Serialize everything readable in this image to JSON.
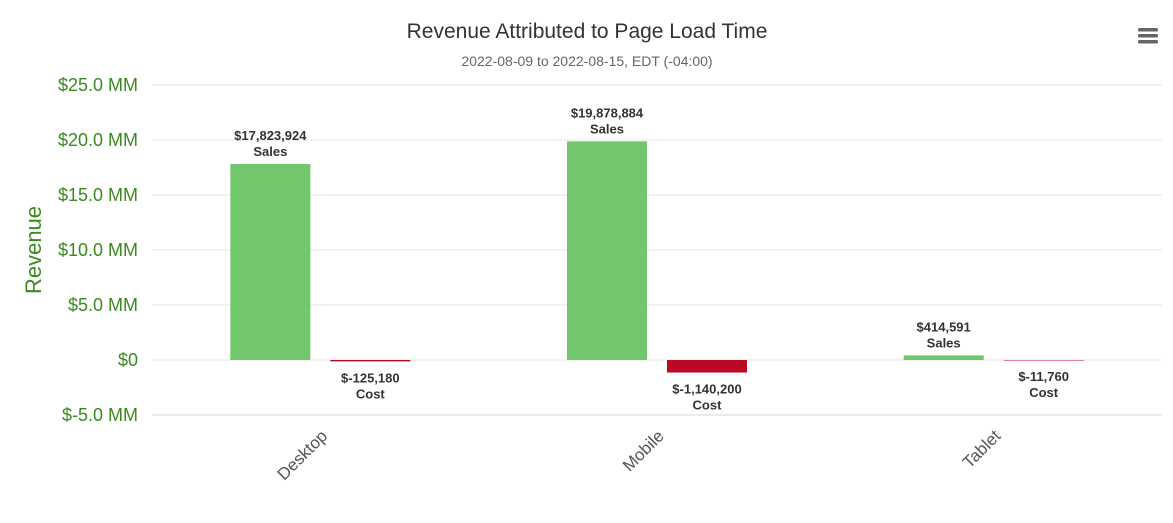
{
  "chart_data": {
    "type": "bar",
    "title": "Revenue Attributed to Page Load Time",
    "subtitle": "2022-08-09 to 2022-08-15, EDT (-04:00)",
    "ylabel": "Revenue",
    "xlabel": "",
    "categories": [
      "Desktop",
      "Mobile",
      "Tablet"
    ],
    "ylim": [
      -5000000,
      25000000
    ],
    "yticks": [
      {
        "value": 25000000,
        "label": "$25.0 MM"
      },
      {
        "value": 20000000,
        "label": "$20.0 MM"
      },
      {
        "value": 15000000,
        "label": "$15.0 MM"
      },
      {
        "value": 10000000,
        "label": "$10.0 MM"
      },
      {
        "value": 5000000,
        "label": "$5.0 MM"
      },
      {
        "value": 0,
        "label": "$0"
      },
      {
        "value": -5000000,
        "label": "$-5.0 MM"
      }
    ],
    "grid": true,
    "legend": "none",
    "series": [
      {
        "name": "Sales",
        "color": "#72c66b",
        "values": [
          17823924,
          19878884,
          414591
        ],
        "labels": [
          "$17,823,924",
          "$19,878,884",
          "$414,591"
        ]
      },
      {
        "name": "Cost",
        "color": "#bb0826",
        "values": [
          -125180,
          -1140200,
          -11760
        ],
        "labels": [
          "$-125,180",
          "$-1,140,200",
          "$-11,760"
        ]
      }
    ]
  },
  "toolbar": {
    "menu_icon": "hamburger-menu-icon"
  }
}
